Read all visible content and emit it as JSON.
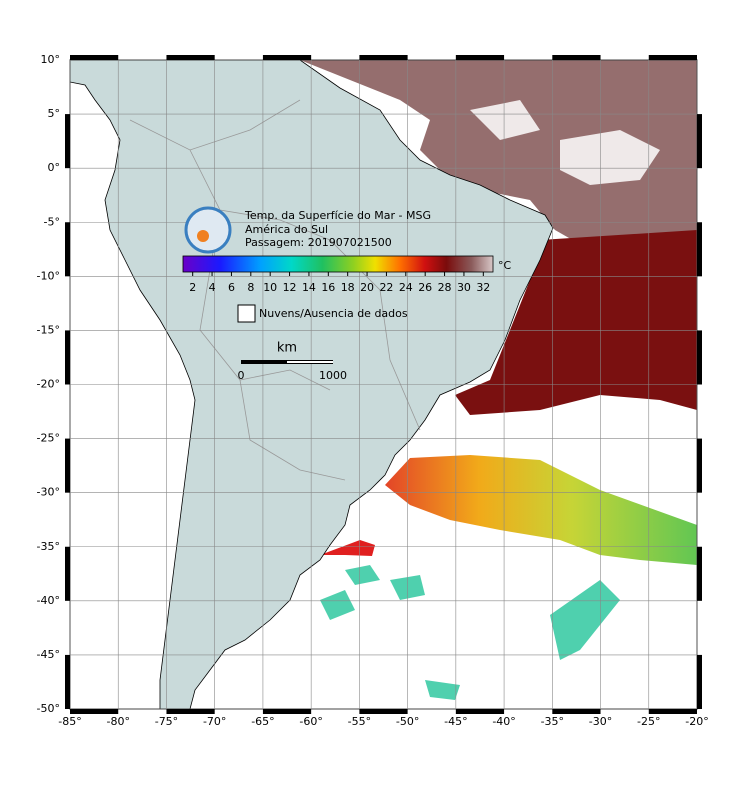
{
  "map": {
    "title": "Temp. da Superfície do Mar - MSG",
    "subtitle": "América do Sul",
    "pass": "Passagem: 201907021500",
    "xlim": [
      -85,
      -20
    ],
    "ylim": [
      -50,
      10
    ],
    "xticks": [
      {
        "value": -85,
        "label": "-85°"
      },
      {
        "value": -80,
        "label": "-80°"
      },
      {
        "value": -75,
        "label": "-75°"
      },
      {
        "value": -70,
        "label": "-70°"
      },
      {
        "value": -65,
        "label": "-65°"
      },
      {
        "value": -60,
        "label": "-60°"
      },
      {
        "value": -55,
        "label": "-55°"
      },
      {
        "value": -50,
        "label": "-50°"
      },
      {
        "value": -45,
        "label": "-45°"
      },
      {
        "value": -40,
        "label": "-40°"
      },
      {
        "value": -35,
        "label": "-35°"
      },
      {
        "value": -30,
        "label": "-30°"
      },
      {
        "value": -25,
        "label": "-25°"
      },
      {
        "value": -20,
        "label": "-20°"
      }
    ],
    "yticks": [
      {
        "value": 10,
        "label": "10°"
      },
      {
        "value": 5,
        "label": "5°"
      },
      {
        "value": 0,
        "label": "0°"
      },
      {
        "value": -5,
        "label": "-5°"
      },
      {
        "value": -10,
        "label": "-10°"
      },
      {
        "value": -15,
        "label": "-15°"
      },
      {
        "value": -20,
        "label": "-20°"
      },
      {
        "value": -25,
        "label": "-25°"
      },
      {
        "value": -30,
        "label": "-30°"
      },
      {
        "value": -35,
        "label": "-35°"
      },
      {
        "value": -40,
        "label": "-40°"
      },
      {
        "value": -45,
        "label": "-45°"
      },
      {
        "value": -50,
        "label": "-50°"
      }
    ],
    "colorbar": {
      "lim": [
        1,
        33
      ],
      "ticks": [
        2,
        4,
        6,
        8,
        10,
        12,
        14,
        16,
        18,
        20,
        22,
        24,
        26,
        28,
        30,
        32
      ],
      "unit": "°C"
    },
    "legend": "Nuvens/Ausencia de dados",
    "scale": {
      "unit": "km",
      "ticks": [
        0,
        1000
      ]
    }
  }
}
